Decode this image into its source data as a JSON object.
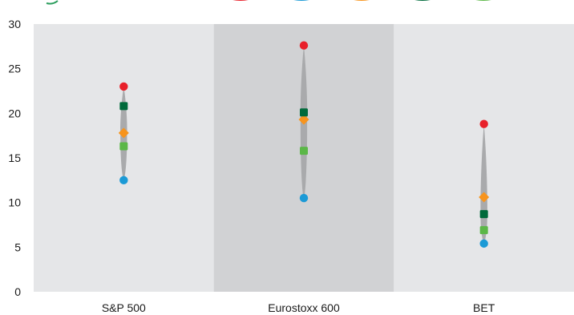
{
  "chart_data": {
    "type": "scatter",
    "categories": [
      "S&P 500",
      "Eurostoxx 600",
      "BET"
    ],
    "ylim": [
      0,
      30
    ],
    "yticks": [
      "0",
      "5",
      "10",
      "15",
      "20",
      "25",
      "30"
    ],
    "grid": false,
    "legend": "top (partially visible, cropped)",
    "panel_colors": [
      "#e5e6e8",
      "#d1d2d4",
      "#e5e6e8"
    ],
    "series": [
      {
        "color": "#e8202a",
        "marker": "circle",
        "values": [
          23.0,
          27.6,
          18.8
        ]
      },
      {
        "color": "#0074c5",
        "marker": "square",
        "values": [
          20.8,
          20.1,
          8.7
        ]
      },
      {
        "color": "#f7941d",
        "marker": "diamond",
        "values": [
          17.8,
          19.3,
          10.6
        ]
      },
      {
        "color": "#5bb747",
        "marker": "square",
        "values": [
          16.3,
          15.8,
          6.9
        ]
      },
      {
        "color": "#1b9ad6",
        "marker": "circle",
        "values": [
          12.5,
          10.5,
          5.4
        ]
      }
    ],
    "violin_color": "#a9aaac",
    "legend_colors": [
      "#e8202a",
      "#1b9ad6",
      "#f7941d",
      "#006a3b",
      "#5bb747"
    ]
  }
}
